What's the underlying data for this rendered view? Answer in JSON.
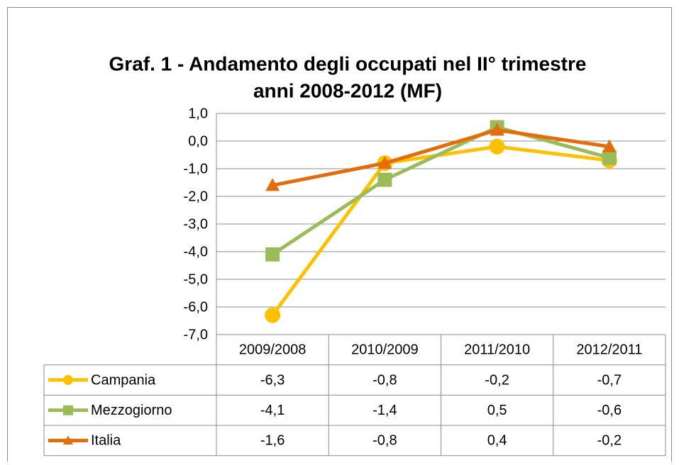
{
  "chart_data": {
    "type": "line",
    "title": [
      "Graf. 1 - Andamento degli occupati nel II° trimestre",
      "anni 2008-2012 (MF)"
    ],
    "categories": [
      "2009/2008",
      "2010/2009",
      "2011/2010",
      "2012/2011"
    ],
    "series": [
      {
        "name": "Campania",
        "color": "#ffc000",
        "marker": "circle",
        "values": [
          -6.3,
          -0.8,
          -0.2,
          -0.7
        ],
        "value_labels": [
          "-6,3",
          "-0,8",
          "-0,2",
          "-0,7"
        ]
      },
      {
        "name": "Mezzogiorno",
        "color": "#9bbb59",
        "marker": "square",
        "values": [
          -4.1,
          -1.4,
          0.5,
          -0.6
        ],
        "value_labels": [
          "-4,1",
          "-1,4",
          "0,5",
          "-0,6"
        ]
      },
      {
        "name": "Italia",
        "color": "#e46c0a",
        "marker": "triangle",
        "values": [
          -1.6,
          -0.8,
          0.4,
          -0.2
        ],
        "value_labels": [
          "-1,6",
          "-0,8",
          "0,4",
          "-0,2"
        ]
      }
    ],
    "ylim": [
      -7,
      1
    ],
    "yticks": [
      {
        "value": 1,
        "label": "1,0"
      },
      {
        "value": 0,
        "label": "0,0"
      },
      {
        "value": -1,
        "label": "-1,0"
      },
      {
        "value": -2,
        "label": "-2,0"
      },
      {
        "value": -3,
        "label": "-3,0"
      },
      {
        "value": -4,
        "label": "-4,0"
      },
      {
        "value": -5,
        "label": "-5,0"
      },
      {
        "value": -6,
        "label": "-6,0"
      },
      {
        "value": -7,
        "label": "-7,0"
      }
    ],
    "grid": true,
    "data_table": true
  }
}
